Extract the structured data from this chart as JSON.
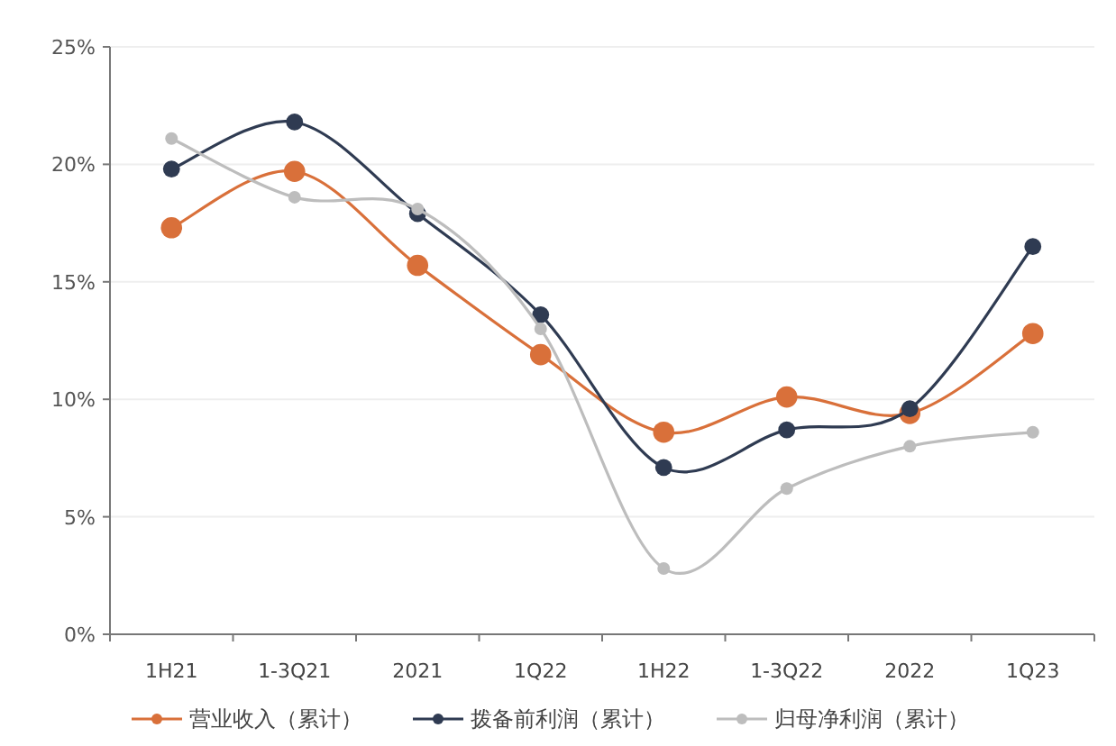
{
  "chart_data": {
    "type": "line",
    "categories": [
      "1H21",
      "1-3Q21",
      "2021",
      "1Q22",
      "1H22",
      "1-3Q22",
      "2022",
      "1Q23"
    ],
    "series": [
      {
        "name": "营业收入（累计）",
        "color": "#d9703a",
        "values": [
          17.3,
          19.7,
          15.7,
          11.9,
          8.6,
          10.1,
          9.4,
          12.8
        ]
      },
      {
        "name": "拨备前利润（累计）",
        "color": "#2f3b52",
        "values": [
          19.8,
          21.8,
          17.9,
          13.6,
          7.1,
          8.7,
          9.6,
          16.5
        ]
      },
      {
        "name": "归母净利润（累计）",
        "color": "#bdbdbd",
        "values": [
          21.1,
          18.6,
          18.1,
          13.0,
          2.8,
          6.2,
          8.0,
          8.6
        ]
      }
    ],
    "ylim": [
      0,
      25
    ],
    "yticks": [
      {
        "value": 0,
        "label": "0%"
      },
      {
        "value": 5,
        "label": "5%"
      },
      {
        "value": 10,
        "label": "10%"
      },
      {
        "value": 15,
        "label": "15%"
      },
      {
        "value": 20,
        "label": "20%"
      },
      {
        "value": 25,
        "label": "25%"
      }
    ],
    "grid": "y",
    "legend": "bottom",
    "marker": "circle",
    "line_style": "solid"
  }
}
